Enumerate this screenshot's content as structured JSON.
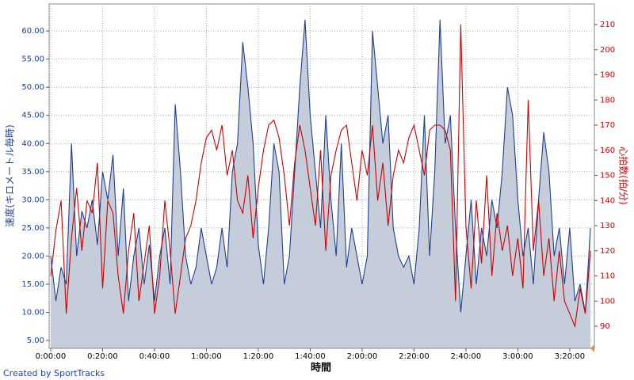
{
  "chart_data": {
    "type": "line",
    "ylabel": "速度(キロメートル毎時)",
    "y2label": "心拍数(拍/分)",
    "xlabel": "時間",
    "credit": "Created by SportTracks",
    "x": [
      0,
      2,
      4,
      6,
      8,
      10,
      12,
      14,
      16,
      18,
      20,
      22,
      24,
      26,
      28,
      30,
      32,
      34,
      36,
      38,
      40,
      42,
      44,
      46,
      48,
      50,
      52,
      54,
      56,
      58,
      60,
      62,
      64,
      66,
      68,
      70,
      72,
      74,
      76,
      78,
      80,
      82,
      84,
      86,
      88,
      90,
      92,
      94,
      96,
      98,
      100,
      102,
      104,
      106,
      108,
      110,
      112,
      114,
      116,
      118,
      120,
      122,
      124,
      126,
      128,
      130,
      132,
      134,
      136,
      138,
      140,
      142,
      144,
      146,
      148,
      150,
      152,
      154,
      156,
      158,
      160,
      162,
      164,
      166,
      168,
      170,
      172,
      174,
      176,
      178,
      180,
      182,
      184,
      186,
      188,
      190,
      192,
      194,
      196,
      198,
      200,
      202,
      204,
      206,
      208
    ],
    "xlim": [
      -0.6,
      209.5
    ],
    "xticks": [
      {
        "value": 0,
        "label": "0:00:00"
      },
      {
        "value": 20,
        "label": "0:20:00"
      },
      {
        "value": 40,
        "label": "0:40:00"
      },
      {
        "value": 60,
        "label": "1:00:00"
      },
      {
        "value": 80,
        "label": "1:20:00"
      },
      {
        "value": 100,
        "label": "1:40:00"
      },
      {
        "value": 120,
        "label": "2:00:00"
      },
      {
        "value": 140,
        "label": "2:20:00"
      },
      {
        "value": 160,
        "label": "2:40:00"
      },
      {
        "value": 180,
        "label": "3:00:00"
      },
      {
        "value": 200,
        "label": "3:20:00"
      }
    ],
    "ylim": [
      3.6,
      64.8
    ],
    "yticks": [
      {
        "value": 5,
        "label": "5.00"
      },
      {
        "value": 10,
        "label": "10.00"
      },
      {
        "value": 15,
        "label": "15.00"
      },
      {
        "value": 20,
        "label": "20.00"
      },
      {
        "value": 25,
        "label": "25.00"
      },
      {
        "value": 30,
        "label": "30.00"
      },
      {
        "value": 35,
        "label": "35.00"
      },
      {
        "value": 40,
        "label": "40.00"
      },
      {
        "value": 45,
        "label": "45.00"
      },
      {
        "value": 50,
        "label": "50.00"
      },
      {
        "value": 55,
        "label": "55.00"
      },
      {
        "value": 60,
        "label": "60.00"
      }
    ],
    "y2lim": [
      81.2,
      218.2
    ],
    "y2ticks": [
      90,
      100,
      110,
      120,
      130,
      140,
      150,
      160,
      170,
      180,
      190,
      200,
      210
    ],
    "grid": true,
    "series": [
      {
        "name": "速度",
        "color": "#1f3f8f",
        "fill": "#c6cdda",
        "values": [
          20,
          12,
          18,
          15,
          40,
          20,
          28,
          25,
          30,
          22,
          35,
          30,
          38,
          20,
          32,
          12,
          20,
          25,
          15,
          22,
          12,
          20,
          25,
          15,
          47,
          35,
          20,
          15,
          18,
          25,
          20,
          15,
          18,
          25,
          18,
          35,
          40,
          58,
          50,
          40,
          22,
          15,
          25,
          40,
          35,
          15,
          20,
          35,
          50,
          62,
          45,
          35,
          25,
          45,
          30,
          20,
          40,
          18,
          25,
          20,
          15,
          20,
          60,
          50,
          40,
          45,
          25,
          20,
          18,
          20,
          15,
          25,
          45,
          20,
          35,
          62,
          40,
          45,
          25,
          10,
          20,
          30,
          15,
          25,
          20,
          30,
          25,
          35,
          50,
          45,
          30,
          20,
          25,
          15,
          30,
          42,
          35,
          20,
          25,
          15,
          25,
          12,
          15,
          10,
          25
        ]
      },
      {
        "name": "心拍数",
        "color": "#cc0000",
        "axis": "y2",
        "values": [
          110,
          128,
          140,
          95,
          125,
          145,
          120,
          140,
          135,
          155,
          105,
          140,
          135,
          110,
          95,
          120,
          135,
          100,
          115,
          130,
          95,
          110,
          140,
          120,
          95,
          110,
          125,
          130,
          140,
          155,
          165,
          168,
          160,
          170,
          150,
          160,
          140,
          135,
          150,
          125,
          145,
          160,
          170,
          172,
          165,
          150,
          130,
          155,
          170,
          160,
          145,
          130,
          160,
          120,
          150,
          160,
          168,
          170,
          155,
          140,
          160,
          150,
          170,
          140,
          155,
          130,
          150,
          160,
          155,
          165,
          170,
          160,
          150,
          168,
          170,
          170,
          168,
          160,
          100,
          210,
          130,
          105,
          140,
          115,
          150,
          110,
          135,
          120,
          130,
          110,
          125,
          105,
          180,
          120,
          140,
          110,
          125,
          100,
          120,
          100,
          95,
          90,
          105,
          95,
          120
        ]
      }
    ]
  }
}
